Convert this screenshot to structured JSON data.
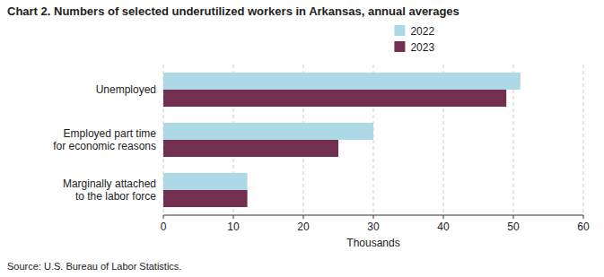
{
  "chart_data": {
    "type": "bar",
    "orientation": "horizontal",
    "title": "Chart 2.  Numbers of selected underutilized workers in Arkansas,  annual averages",
    "source": "Source: U.S. Bureau of Labor Statistics.",
    "categories": [
      "Unemployed",
      "Employed part time\nfor economic reasons",
      "Marginally attached\nto the labor force"
    ],
    "series": [
      {
        "name": "2022",
        "color": "#add8e6",
        "values": [
          51,
          30,
          12
        ]
      },
      {
        "name": "2023",
        "color": "#722f4f",
        "values": [
          49,
          25,
          12
        ]
      }
    ],
    "xlabel": "Thousands",
    "xlim": [
      0,
      60
    ],
    "xticks": [
      0,
      10,
      20,
      30,
      40,
      50,
      60
    ],
    "grid": true,
    "legend": "top"
  }
}
